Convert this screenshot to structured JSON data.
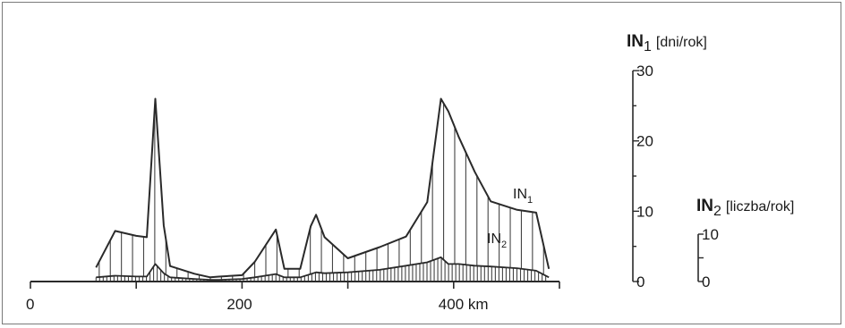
{
  "chart_data": {
    "type": "area",
    "x": [
      62,
      80,
      100,
      110,
      118,
      126,
      132,
      155,
      170,
      178,
      200,
      212,
      232,
      240,
      255,
      265,
      270,
      278,
      300,
      330,
      355,
      375,
      388,
      395,
      405,
      420,
      435,
      460,
      478,
      490
    ],
    "x_axis": {
      "ticks": [
        0,
        200,
        400
      ],
      "tick_labels": [
        "0",
        "200",
        "400 km"
      ],
      "range": [
        0,
        500
      ]
    },
    "y_axis_in1": {
      "title_main": "IN",
      "title_sub": "1",
      "title_unit": "[dni/rok]",
      "range": [
        0,
        30
      ],
      "ticks": [
        0,
        10,
        20,
        30
      ],
      "tick_labels": [
        "0",
        "10",
        "20",
        "30"
      ]
    },
    "y_axis_in2": {
      "title_main": "IN",
      "title_sub": "2",
      "title_unit": "[liczba/rok]",
      "range": [
        0,
        10
      ],
      "ticks": [
        0,
        10
      ],
      "tick_labels": [
        "0",
        "10"
      ]
    },
    "series": [
      {
        "name": "IN1",
        "label_main": "IN",
        "label_sub": "1",
        "axis": "in1",
        "values": [
          2,
          7.2,
          6.5,
          6.3,
          26,
          8,
          2.2,
          1.1,
          0.6,
          0.7,
          0.9,
          2.8,
          7.4,
          1.8,
          1.8,
          7.9,
          9.5,
          6.3,
          3.3,
          4.9,
          6.4,
          11.3,
          26,
          24.2,
          20.5,
          15.6,
          11.4,
          10.2,
          9.8,
          1.8
        ],
        "color": "#333333"
      },
      {
        "name": "IN2",
        "label_main": "IN",
        "label_sub": "2",
        "axis": "in2",
        "values": [
          0.5,
          0.7,
          0.6,
          0.6,
          2.1,
          1,
          0.5,
          0.3,
          0.2,
          0.2,
          0.3,
          0.5,
          0.9,
          0.5,
          0.5,
          0.9,
          1.1,
          1,
          1.1,
          1.4,
          1.9,
          2.3,
          2.9,
          2.1,
          2.1,
          1.9,
          1.8,
          1.6,
          1.3,
          0.5
        ],
        "color": "#333333"
      }
    ],
    "grid": false,
    "legend": "none"
  }
}
